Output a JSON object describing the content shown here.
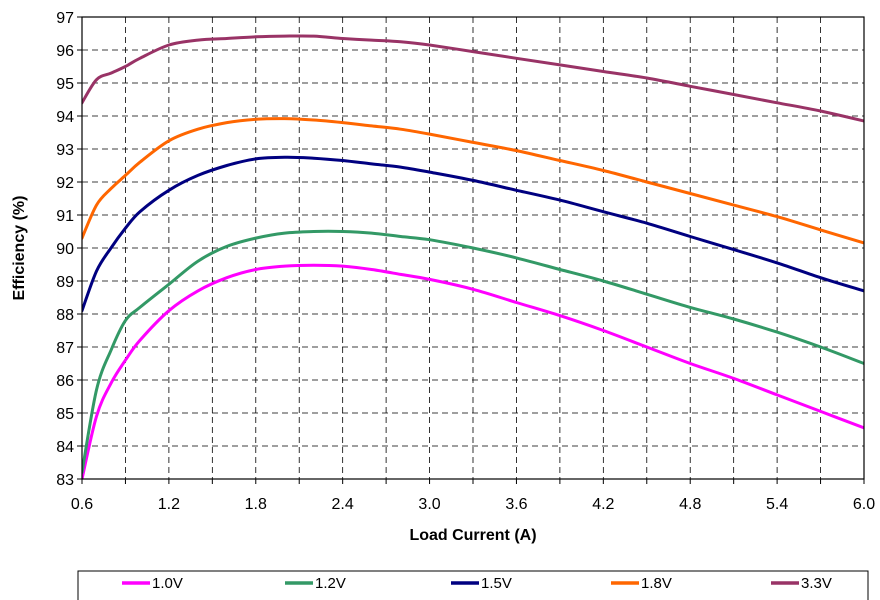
{
  "chart_data": {
    "type": "line",
    "title": "",
    "xlabel": "Load Current (A)",
    "ylabel": "Efficiency (%)",
    "xlim": [
      0.6,
      6.0
    ],
    "ylim": [
      83,
      97
    ],
    "x_ticks": [
      0.6,
      1.2,
      1.8,
      2.4,
      3.0,
      3.6,
      4.2,
      4.8,
      5.4,
      6.0
    ],
    "x_tick_labels": [
      "0.6",
      "1.2",
      "1.8",
      "2.4",
      "3.0",
      "3.6",
      "4.2",
      "4.8",
      "5.4",
      "6.0"
    ],
    "y_ticks": [
      83,
      84,
      85,
      86,
      87,
      88,
      89,
      90,
      91,
      92,
      93,
      94,
      95,
      96,
      97
    ],
    "y_tick_labels": [
      "83",
      "84",
      "85",
      "86",
      "87",
      "88",
      "89",
      "90",
      "91",
      "92",
      "93",
      "94",
      "95",
      "96",
      "97"
    ],
    "grid": "dashed",
    "legend_position": "bottom",
    "series": [
      {
        "name": "1.0V",
        "color": "#ff00ff",
        "x": [
          0.6,
          0.7,
          0.8,
          0.9,
          1.0,
          1.2,
          1.4,
          1.6,
          1.8,
          2.0,
          2.2,
          2.4,
          2.6,
          2.8,
          3.0,
          3.3,
          3.6,
          3.9,
          4.2,
          4.5,
          4.8,
          5.1,
          5.4,
          5.7,
          6.0
        ],
        "values": [
          83.0,
          84.9,
          85.9,
          86.6,
          87.2,
          88.1,
          88.7,
          89.1,
          89.35,
          89.45,
          89.48,
          89.45,
          89.35,
          89.2,
          89.05,
          88.75,
          88.35,
          87.95,
          87.5,
          87.0,
          86.5,
          86.05,
          85.55,
          85.05,
          84.55
        ]
      },
      {
        "name": "1.2V",
        "color": "#339966",
        "x": [
          0.6,
          0.7,
          0.8,
          0.9,
          1.0,
          1.2,
          1.4,
          1.6,
          1.8,
          2.0,
          2.2,
          2.4,
          2.6,
          2.8,
          3.0,
          3.3,
          3.6,
          3.9,
          4.2,
          4.5,
          4.8,
          5.1,
          5.4,
          5.7,
          6.0
        ],
        "values": [
          83.2,
          85.7,
          86.9,
          87.8,
          88.2,
          88.9,
          89.6,
          90.05,
          90.3,
          90.45,
          90.5,
          90.5,
          90.45,
          90.35,
          90.25,
          90.0,
          89.7,
          89.35,
          89.0,
          88.6,
          88.2,
          87.85,
          87.45,
          87.0,
          86.5
        ]
      },
      {
        "name": "1.5V",
        "color": "#000080",
        "x": [
          0.6,
          0.7,
          0.8,
          0.9,
          1.0,
          1.2,
          1.4,
          1.6,
          1.8,
          2.0,
          2.2,
          2.4,
          2.6,
          2.8,
          3.0,
          3.3,
          3.6,
          3.9,
          4.2,
          4.5,
          4.8,
          5.1,
          5.4,
          5.7,
          6.0
        ],
        "values": [
          88.1,
          89.3,
          90.0,
          90.6,
          91.1,
          91.75,
          92.2,
          92.5,
          92.7,
          92.75,
          92.72,
          92.65,
          92.55,
          92.45,
          92.3,
          92.05,
          91.75,
          91.45,
          91.1,
          90.75,
          90.35,
          89.95,
          89.55,
          89.1,
          88.7
        ]
      },
      {
        "name": "1.8V",
        "color": "#ff6600",
        "x": [
          0.6,
          0.7,
          0.8,
          0.9,
          1.0,
          1.2,
          1.4,
          1.6,
          1.8,
          2.0,
          2.2,
          2.4,
          2.6,
          2.8,
          3.0,
          3.3,
          3.6,
          3.9,
          4.2,
          4.5,
          4.8,
          5.1,
          5.4,
          5.7,
          6.0
        ],
        "values": [
          90.3,
          91.3,
          91.8,
          92.2,
          92.6,
          93.25,
          93.6,
          93.8,
          93.9,
          93.92,
          93.88,
          93.8,
          93.7,
          93.6,
          93.45,
          93.2,
          92.95,
          92.65,
          92.35,
          92.0,
          91.65,
          91.3,
          90.95,
          90.55,
          90.15
        ]
      },
      {
        "name": "3.3V",
        "color": "#993366",
        "x": [
          0.6,
          0.7,
          0.8,
          0.9,
          1.0,
          1.2,
          1.4,
          1.6,
          1.8,
          2.0,
          2.2,
          2.4,
          2.6,
          2.8,
          3.0,
          3.3,
          3.6,
          3.9,
          4.2,
          4.5,
          4.8,
          5.1,
          5.4,
          5.7,
          6.0
        ],
        "values": [
          94.4,
          95.1,
          95.3,
          95.5,
          95.75,
          96.15,
          96.3,
          96.35,
          96.4,
          96.42,
          96.42,
          96.35,
          96.3,
          96.25,
          96.15,
          95.95,
          95.75,
          95.55,
          95.35,
          95.15,
          94.9,
          94.65,
          94.4,
          94.15,
          93.85
        ]
      }
    ]
  }
}
